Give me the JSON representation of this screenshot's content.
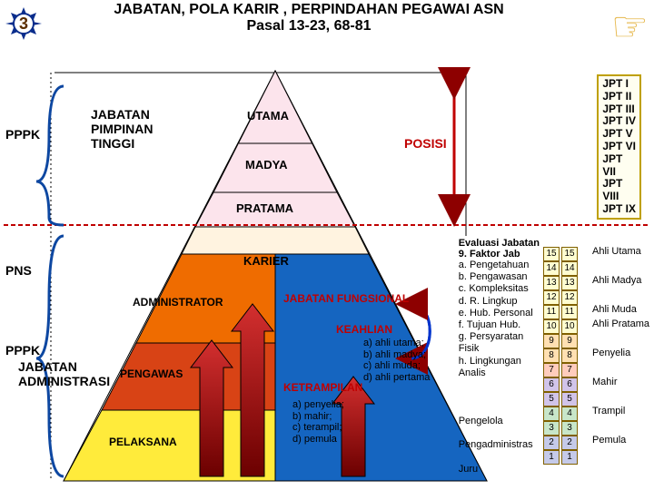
{
  "title_l1": "JABATAN, POLA KARIR , PERPINDAHAN PEGAWAI ASN",
  "title_l2": "Pasal 13-23, 68-81",
  "badge_number": "3",
  "left_labels": {
    "pppk1": "PPPK",
    "jpt1": "JABATAN",
    "jpt2": "PIMPINAN",
    "jpt3": "TINGGI",
    "pns": "PNS",
    "pppk2": "PPPK",
    "admin1": "JABATAN",
    "admin2": "ADMINISTRASI"
  },
  "red_labels": {
    "posisi": "POSISI",
    "karier": "KARIER",
    "jf": "JABATAN FUNGSIONAL",
    "keahlian": "KEAHLIAN",
    "ketrampilan": "KETRAMPILAN"
  },
  "pyramid_labels": {
    "utama": "UTAMA",
    "madya": "MADYA",
    "pratama": "PRATAMA",
    "administrator": "ADMINISTRATOR",
    "pengawas": "PENGAWAS",
    "pelaksana": "PELAKSANA"
  },
  "jpt_list": [
    "JPT  I",
    "JPT  II",
    "JPT  III",
    "JPT  IV",
    "JPT  V",
    "JPT  VI",
    "JPT",
    "VII",
    "JPT",
    "VIII",
    "JPT  IX"
  ],
  "eval_head": "Evaluasi Jabatan",
  "eval_sub": "9. Faktor Jab",
  "factors": [
    "a. Pengetahuan",
    "b. Pengawasan",
    "c. Kompleksitas",
    "d. R. Lingkup",
    "e. Hub. Personal",
    "f. Tujuan Hub.",
    "g. Persyaratan",
    "   Fisik",
    "h. Lingkungan",
    "          Analis"
  ],
  "roles_extra": [
    "Pengelola",
    "",
    "Pengadministras",
    "",
    "Juru"
  ],
  "grades": [
    "15",
    "14",
    "13",
    "12",
    "11",
    "10",
    "9",
    "8",
    "7",
    "6",
    "5",
    "4",
    "3",
    "2",
    "1"
  ],
  "grade_colors": [
    "#fffdd0",
    "#fffdd0",
    "#fffdd0",
    "#fffdd0",
    "#fffdd0",
    "#fffdd0",
    "#ffe0b2",
    "#ffe0b2",
    "#ffccbc",
    "#d1c4e9",
    "#d1c4e9",
    "#c8e6c9",
    "#c8e6c9",
    "#c5cae9",
    "#c5cae9"
  ],
  "grade_labels": [
    "Ahli Utama",
    "",
    "Ahli Madya",
    "",
    "Ahli Muda",
    "Ahli Pratama",
    "",
    "Penyelia",
    "",
    "Mahir",
    "",
    "Trampil",
    "",
    "Pemula",
    ""
  ],
  "ahli_list": [
    "a) ahli utama;",
    "b) ahli madya;",
    "c) ahli muda;",
    "d) ahli pertama"
  ],
  "tramp_list": [
    "a) penyelia;",
    "b) mahir;",
    "c) terampil;",
    "d) pemula"
  ],
  "colors": {
    "pyr_top": "#fce4ec",
    "pyr_mid": "#fff3e0",
    "pyr_admin": "#ef6c00",
    "pyr_peng": "#d84315",
    "pyr_pel": "#ffeb3b",
    "pyr_right": "#1565c0",
    "brace": "#0d47a1",
    "outline": "#000"
  }
}
